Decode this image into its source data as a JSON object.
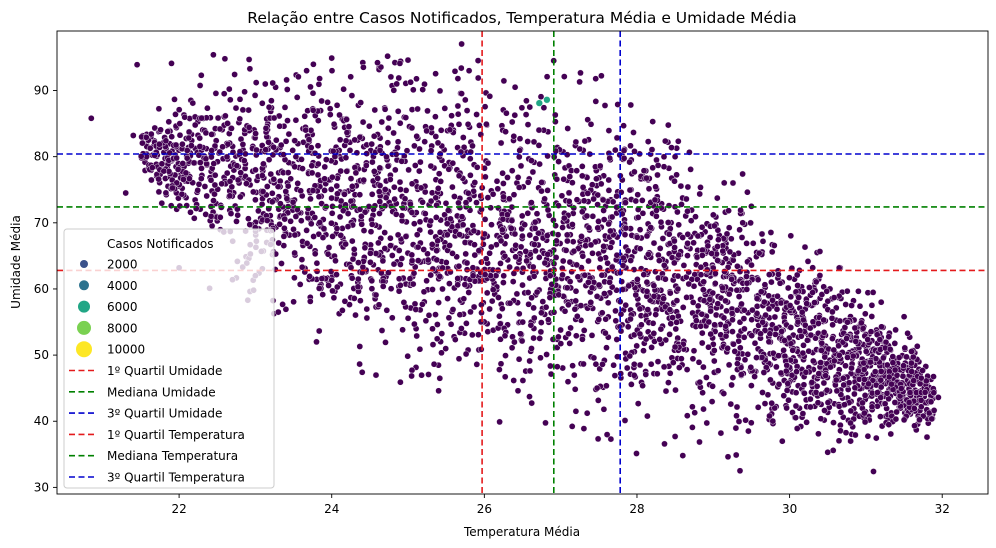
{
  "chart_data": {
    "type": "scatter",
    "title": "Relação entre Casos Notificados, Temperatura Média e Umidade Média",
    "xlabel": "Temperatura Média",
    "ylabel": "Umidade Média",
    "xlim": [
      20.4,
      32.6
    ],
    "ylim": [
      29,
      99
    ],
    "xticks": [
      22,
      24,
      26,
      28,
      30,
      32
    ],
    "yticks": [
      30,
      40,
      50,
      60,
      70,
      80,
      90
    ],
    "grid": false,
    "legend_position": "lower-left",
    "hue_legend_title": "Casos Notificados",
    "hue_levels": [
      {
        "label": "2000",
        "value": 2000,
        "color": "#3b528b"
      },
      {
        "label": "4000",
        "value": 4000,
        "color": "#2c728e"
      },
      {
        "label": "6000",
        "value": 6000,
        "color": "#21a685"
      },
      {
        "label": "8000",
        "value": 8000,
        "color": "#7ad151"
      },
      {
        "label": "10000",
        "value": 10000,
        "color": "#fde725"
      }
    ],
    "reference_lines": [
      {
        "label": "1º Quartil Umidade",
        "orientation": "horizontal",
        "value": 62.8,
        "color": "#e41a1c"
      },
      {
        "label": "Mediana Umidade",
        "orientation": "horizontal",
        "value": 72.4,
        "color": "#008000"
      },
      {
        "label": "3º Quartil Umidade",
        "orientation": "horizontal",
        "value": 80.4,
        "color": "#0000cd"
      },
      {
        "label": "1º Quartil Temperatura",
        "orientation": "vertical",
        "value": 25.97,
        "color": "#e41a1c"
      },
      {
        "label": "Mediana Temperatura",
        "orientation": "vertical",
        "value": 26.91,
        "color": "#008000"
      },
      {
        "label": "3º Quartil Temperatura",
        "orientation": "vertical",
        "value": 27.78,
        "color": "#0000cd"
      }
    ],
    "point_color": "#440154",
    "point_edge_color": "#ffffff",
    "cloud_upper_edge": [
      {
        "x": 21.5,
        "y": 84
      },
      {
        "x": 22.0,
        "y": 88
      },
      {
        "x": 22.5,
        "y": 91
      },
      {
        "x": 23.0,
        "y": 92
      },
      {
        "x": 24.0,
        "y": 93
      },
      {
        "x": 25.0,
        "y": 93
      },
      {
        "x": 26.0,
        "y": 91
      },
      {
        "x": 27.0,
        "y": 89
      },
      {
        "x": 28.0,
        "y": 85
      },
      {
        "x": 29.0,
        "y": 78
      },
      {
        "x": 29.5,
        "y": 72
      },
      {
        "x": 30.0,
        "y": 67
      },
      {
        "x": 30.5,
        "y": 63
      },
      {
        "x": 31.0,
        "y": 58
      },
      {
        "x": 31.5,
        "y": 53
      },
      {
        "x": 31.9,
        "y": 47
      }
    ],
    "cloud_lower_edge": [
      {
        "x": 21.5,
        "y": 78
      },
      {
        "x": 22.0,
        "y": 71
      },
      {
        "x": 22.5,
        "y": 65
      },
      {
        "x": 23.0,
        "y": 60
      },
      {
        "x": 23.5,
        "y": 57
      },
      {
        "x": 24.0,
        "y": 53
      },
      {
        "x": 25.0,
        "y": 48
      },
      {
        "x": 26.0,
        "y": 45
      },
      {
        "x": 27.0,
        "y": 43
      },
      {
        "x": 28.0,
        "y": 42
      },
      {
        "x": 29.0,
        "y": 41
      },
      {
        "x": 30.0,
        "y": 39
      },
      {
        "x": 31.0,
        "y": 38
      },
      {
        "x": 31.9,
        "y": 39
      }
    ],
    "scattered_points": [
      {
        "x": 20.85,
        "y": 85.8
      },
      {
        "x": 21.3,
        "y": 74.5
      },
      {
        "x": 21.45,
        "y": 93.9
      },
      {
        "x": 21.4,
        "y": 83.2
      },
      {
        "x": 21.9,
        "y": 94.1
      },
      {
        "x": 22.45,
        "y": 95.4
      },
      {
        "x": 22.6,
        "y": 94.8
      },
      {
        "x": 22.0,
        "y": 63.2
      },
      {
        "x": 22.1,
        "y": 72.6
      },
      {
        "x": 22.4,
        "y": 60.1
      },
      {
        "x": 22.7,
        "y": 61.4
      },
      {
        "x": 22.9,
        "y": 58.3
      },
      {
        "x": 23.0,
        "y": 62.0
      },
      {
        "x": 23.3,
        "y": 56.5
      },
      {
        "x": 23.8,
        "y": 52.0
      },
      {
        "x": 24.4,
        "y": 47.4
      },
      {
        "x": 24.9,
        "y": 45.9
      },
      {
        "x": 25.4,
        "y": 44.6
      },
      {
        "x": 26.2,
        "y": 39.9
      },
      {
        "x": 27.2,
        "y": 41.5
      },
      {
        "x": 28.5,
        "y": 37.7
      },
      {
        "x": 28.6,
        "y": 34.8
      },
      {
        "x": 29.1,
        "y": 38.2
      },
      {
        "x": 29.3,
        "y": 34.9
      },
      {
        "x": 29.35,
        "y": 32.5
      },
      {
        "x": 30.1,
        "y": 38.9
      },
      {
        "x": 30.5,
        "y": 35.3
      },
      {
        "x": 30.8,
        "y": 37.0
      },
      {
        "x": 31.1,
        "y": 32.4
      },
      {
        "x": 31.3,
        "y": 39.5
      },
      {
        "x": 31.5,
        "y": 40.2
      },
      {
        "x": 31.8,
        "y": 37.6
      },
      {
        "x": 31.95,
        "y": 43.6
      },
      {
        "x": 31.6,
        "y": 47.5
      },
      {
        "x": 31.5,
        "y": 55.8
      },
      {
        "x": 31.3,
        "y": 52.8
      },
      {
        "x": 31.2,
        "y": 58.0
      },
      {
        "x": 29.0,
        "y": 71.2
      },
      {
        "x": 29.5,
        "y": 72.5
      },
      {
        "x": 28.5,
        "y": 80.0
      },
      {
        "x": 24.0,
        "y": 94.9
      },
      {
        "x": 24.6,
        "y": 94.2
      },
      {
        "x": 25.0,
        "y": 94.6
      },
      {
        "x": 25.8,
        "y": 93.0
      }
    ],
    "highlight_points": [
      {
        "x": 26.72,
        "y": 88.1,
        "color": "#21a685"
      },
      {
        "x": 26.82,
        "y": 88.6,
        "color": "#21a685"
      }
    ]
  }
}
